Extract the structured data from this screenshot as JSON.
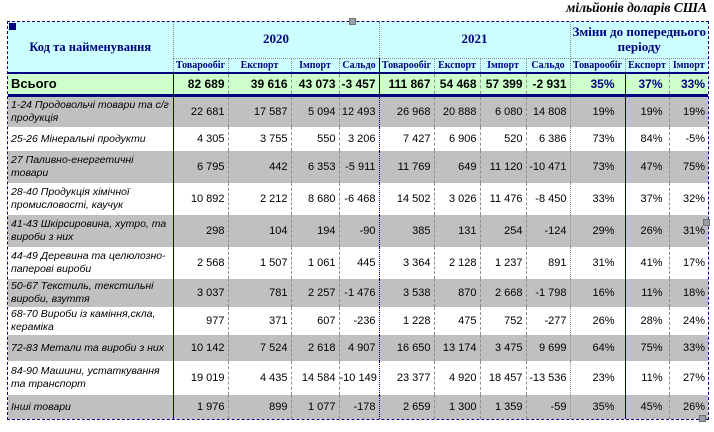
{
  "caption": "мільйонів доларів США",
  "colors": {
    "header_bg": "#CCFFFF",
    "total_row_bg": "#CCFFCC",
    "zebra_row_bg": "#C0C0C0",
    "header_text": "#000080",
    "positive_value": "#333399",
    "negative_value": "#FF0000"
  },
  "table": {
    "name_header": "Код та найменування",
    "groups": [
      {
        "label": "2020",
        "cols": [
          "Товарообіг",
          "Експорт",
          "Імпорт",
          "Сальдо"
        ]
      },
      {
        "label": "2021",
        "cols": [
          "Товарообіг",
          "Експорт",
          "Імпорт",
          "Сальдо"
        ]
      },
      {
        "label": "Зміни до попереднього періоду",
        "cols": [
          "Товарообіг",
          "Експорт",
          "Імпорт"
        ]
      }
    ],
    "total_row": {
      "label": "Всього",
      "values": [
        "82 689",
        "39 616",
        "43 073",
        "-3 457",
        "111 867",
        "54 468",
        "57 399",
        "-2 931",
        "35%",
        "37%",
        "33%"
      ]
    },
    "rows": [
      {
        "label": "1-24 Продовольчі товари та с/г продукція",
        "values": [
          "22 681",
          "17 587",
          "5 094",
          "12 493",
          "26 968",
          "20 888",
          "6 080",
          "14 808",
          "19%",
          "19%",
          "19%"
        ]
      },
      {
        "label": "25-26 Мінеральні продукти",
        "values": [
          "4 305",
          "3 755",
          "550",
          "3 206",
          "7 427",
          "6 906",
          "520",
          "6 386",
          "73%",
          "84%",
          "-5%"
        ]
      },
      {
        "label": "27 Паливно-енергетичні товари",
        "values": [
          "6 795",
          "442",
          "6 353",
          "-5 911",
          "11 769",
          "649",
          "11 120",
          "-10 471",
          "73%",
          "47%",
          "75%"
        ]
      },
      {
        "label": "28-40 Продукція хімічної промисловості, каучук",
        "values": [
          "10 892",
          "2 212",
          "8 680",
          "-6 468",
          "14 502",
          "3 026",
          "11 476",
          "-8 450",
          "33%",
          "37%",
          "32%"
        ]
      },
      {
        "label": "41-43 Шкірсировина, хутро, та вироби з них",
        "values": [
          "298",
          "104",
          "194",
          "-90",
          "385",
          "131",
          "254",
          "-124",
          "29%",
          "26%",
          "31%"
        ]
      },
      {
        "label": "44-49 Деревина та целюлозно-паперові вироби",
        "values": [
          "2 568",
          "1 507",
          "1 061",
          "445",
          "3 364",
          "2 128",
          "1 237",
          "891",
          "31%",
          "41%",
          "17%"
        ]
      },
      {
        "label": "50-67 Текстиль, текстильні вироби, взуття",
        "values": [
          "3 037",
          "781",
          "2 257",
          "-1 476",
          "3 538",
          "870",
          "2 668",
          "-1 798",
          "16%",
          "11%",
          "18%"
        ]
      },
      {
        "label": "68-70 Вироби із каміння,скла, кераміка",
        "values": [
          "977",
          "371",
          "607",
          "-236",
          "1 228",
          "475",
          "752",
          "-277",
          "26%",
          "28%",
          "24%"
        ]
      },
      {
        "label": "72-83 Метали та вироби з них",
        "values": [
          "10 142",
          "7 524",
          "2 618",
          "4 907",
          "16 650",
          "13 174",
          "3 475",
          "9 699",
          "64%",
          "75%",
          "33%"
        ]
      },
      {
        "label": "84-90 Машини, устаткування та транспорт",
        "values": [
          "19 019",
          "4 435",
          "14 584",
          "-10 149",
          "23 377",
          "4 920",
          "18 457",
          "-13 536",
          "23%",
          "11%",
          "27%"
        ]
      },
      {
        "label": "Інші товари",
        "values": [
          "1 976",
          "899",
          "1 077",
          "-178",
          "2 659",
          "1 300",
          "1 359",
          "-59",
          "35%",
          "45%",
          "26%"
        ]
      }
    ]
  }
}
